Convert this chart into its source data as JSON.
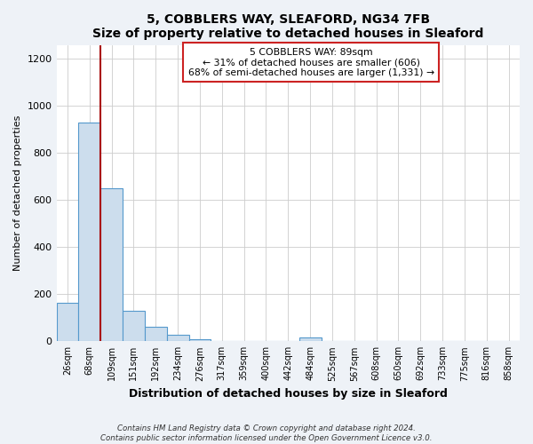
{
  "title": "5, COBBLERS WAY, SLEAFORD, NG34 7FB",
  "subtitle": "Size of property relative to detached houses in Sleaford",
  "xlabel": "Distribution of detached houses by size in Sleaford",
  "ylabel": "Number of detached properties",
  "bar_labels": [
    "26sqm",
    "68sqm",
    "109sqm",
    "151sqm",
    "192sqm",
    "234sqm",
    "276sqm",
    "317sqm",
    "359sqm",
    "400sqm",
    "442sqm",
    "484sqm",
    "525sqm",
    "567sqm",
    "608sqm",
    "650sqm",
    "692sqm",
    "733sqm",
    "775sqm",
    "816sqm",
    "858sqm"
  ],
  "bar_values": [
    163,
    930,
    650,
    128,
    60,
    28,
    10,
    0,
    0,
    0,
    0,
    15,
    0,
    0,
    0,
    0,
    0,
    0,
    0,
    0,
    0
  ],
  "bar_color": "#ccdded",
  "bar_edgecolor": "#5599cc",
  "highlight_color": "#aa1111",
  "annotation_title": "5 COBBLERS WAY: 89sqm",
  "annotation_line1": "← 31% of detached houses are smaller (606)",
  "annotation_line2": "68% of semi-detached houses are larger (1,331) →",
  "annotation_box_edgecolor": "#cc2222",
  "ylim": [
    0,
    1260
  ],
  "yticks": [
    0,
    200,
    400,
    600,
    800,
    1000,
    1200
  ],
  "footer_line1": "Contains HM Land Registry data © Crown copyright and database right 2024.",
  "footer_line2": "Contains public sector information licensed under the Open Government Licence v3.0.",
  "bg_color": "#eef2f7",
  "plot_bg_color": "#ffffff",
  "red_line_x": 1.51
}
